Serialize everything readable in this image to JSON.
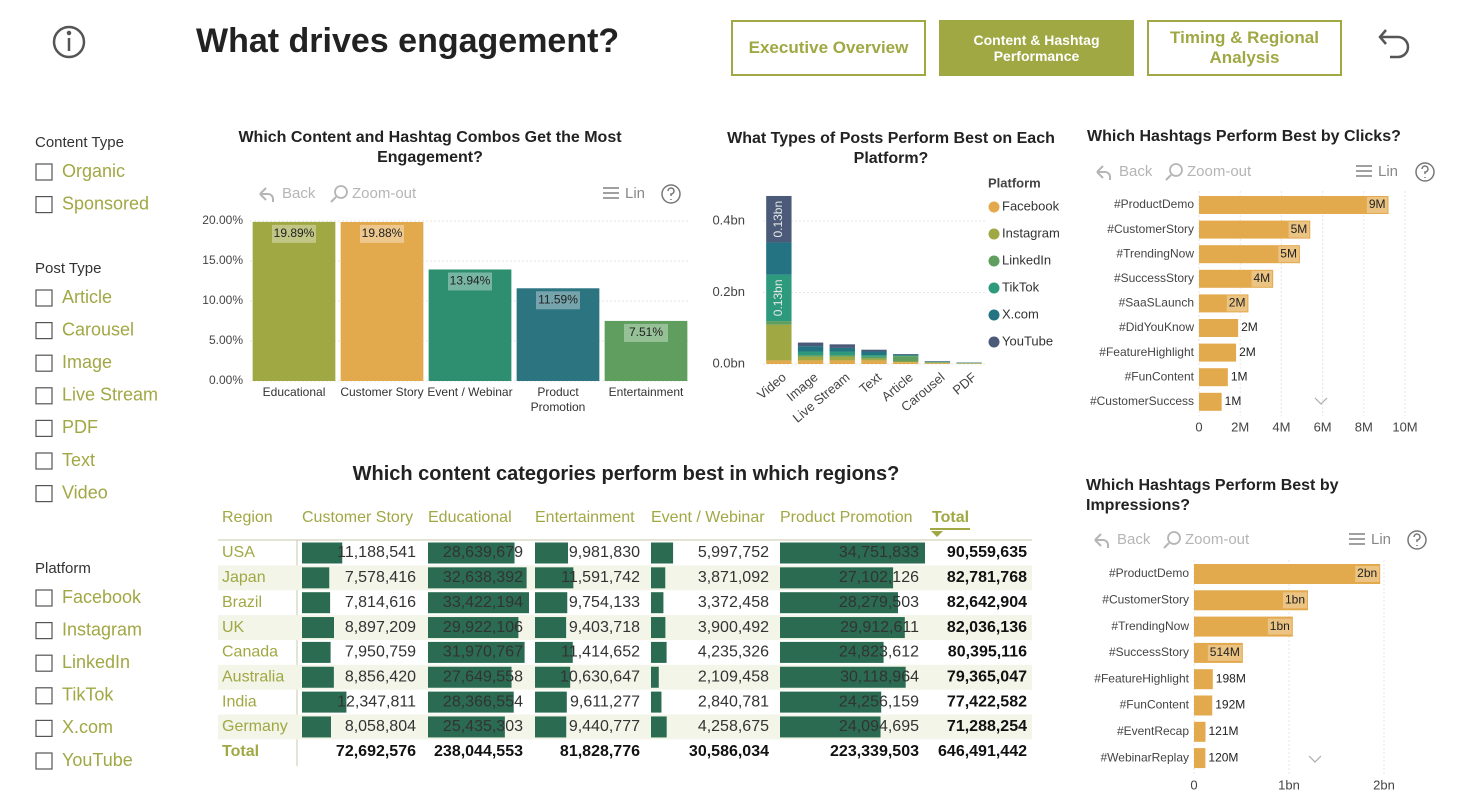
{
  "header": {
    "title": "What drives engagement?",
    "buttons": [
      "Executive Overview",
      "Content & Hashtag Performance",
      "Timing & Regional Analysis"
    ]
  },
  "slicers": [
    {
      "title": "Content Type",
      "items": [
        "Organic",
        "Sponsored"
      ]
    },
    {
      "title": "Post Type",
      "items": [
        "Article",
        "Carousel",
        "Image",
        "Live Stream",
        "PDF",
        "Text",
        "Video"
      ]
    },
    {
      "title": "Platform",
      "items": [
        "Facebook",
        "Instagram",
        "LinkedIn",
        "TikTok",
        "X.com",
        "YouTube"
      ]
    }
  ],
  "chart_data": [
    {
      "type": "bar",
      "title": "Which Content and Hashtag Combos Get the Most Engagement?",
      "toolbar": [
        "Back",
        "Zoom-out",
        "Lin"
      ],
      "categories": [
        "Educational",
        "Customer Story",
        "Event / Webinar",
        "Product Promotion",
        "Entertainment"
      ],
      "values": [
        19.89,
        19.88,
        13.94,
        11.59,
        7.51
      ],
      "value_labels": [
        "19.89%",
        "19.88%",
        "13.94%",
        "11.59%",
        "7.51%"
      ],
      "colors": [
        "#a0a844",
        "#e3a94d",
        "#2d8e70",
        "#2b7480",
        "#5f9e5e"
      ],
      "ylim": [
        0,
        20
      ],
      "yticks": [
        {
          "value": 0,
          "label": "0.00%"
        },
        {
          "value": 5,
          "label": "5.00%"
        },
        {
          "value": 10,
          "label": "10.00%"
        },
        {
          "value": 15,
          "label": "15.00%"
        },
        {
          "value": 20,
          "label": "20.00%"
        }
      ],
      "grid": true
    },
    {
      "type": "stacked_bar",
      "title": "What Types of Posts Perform Best on Each Platform?",
      "legend_title": "Platform",
      "categories": [
        "Video",
        "Image",
        "Live Stream",
        "Text",
        "Article",
        "Carousel",
        "PDF"
      ],
      "series": [
        {
          "name": "Facebook",
          "color": "#e3a94d",
          "values": [
            0.01,
            0.01,
            0.01,
            0.01,
            0.005,
            0.002,
            0.001
          ]
        },
        {
          "name": "Instagram",
          "color": "#a0a844",
          "values": [
            0.1,
            0.01,
            0.01,
            0.005,
            0.002,
            0.002,
            0.001
          ]
        },
        {
          "name": "LinkedIn",
          "color": "#5f9e5e",
          "values": [
            0.01,
            0.005,
            0.005,
            0.005,
            0.015,
            0.001,
            0.001
          ]
        },
        {
          "name": "TikTok",
          "color": "#2d9a7d",
          "values": [
            0.13,
            0.01,
            0.01,
            0.005,
            0.002,
            0.001,
            0.0005
          ],
          "value_labels": [
            "0.13bn",
            null,
            null,
            null,
            null,
            null,
            null
          ]
        },
        {
          "name": "X.com",
          "color": "#237383",
          "values": [
            0.09,
            0.015,
            0.01,
            0.01,
            0.002,
            0.001,
            0.0005
          ]
        },
        {
          "name": "YouTube",
          "color": "#4a5a78",
          "values": [
            0.13,
            0.01,
            0.01,
            0.005,
            0.002,
            0.001,
            0.0005
          ],
          "value_labels": [
            "0.13bn",
            null,
            null,
            null,
            null,
            null,
            null
          ]
        }
      ],
      "ylim": [
        0,
        0.4
      ],
      "yticks": [
        {
          "value": 0,
          "label": "0.0bn"
        },
        {
          "value": 0.2,
          "label": "0.2bn"
        },
        {
          "value": 0.4,
          "label": "0.4bn"
        }
      ],
      "grid": true
    },
    {
      "type": "hbar",
      "title": "Which Hashtags Perform Best by Clicks?",
      "toolbar": [
        "Back",
        "Zoom-out",
        "Lin"
      ],
      "categories": [
        "#ProductDemo",
        "#CustomerStory",
        "#TrendingNow",
        "#SuccessStory",
        "#SaaSLaunch",
        "#DidYouKnow",
        "#FeatureHighlight",
        "#FunContent",
        "#CustomerSuccess"
      ],
      "values": [
        9200000,
        5400000,
        4900000,
        3600000,
        2400000,
        1900000,
        1800000,
        1400000,
        1100000
      ],
      "value_labels": [
        "9M",
        "5M",
        "5M",
        "4M",
        "2M",
        "2M",
        "2M",
        "1M",
        "1M"
      ],
      "color": "#e3a94d",
      "xlim": [
        0,
        10000000
      ],
      "xticks": [
        0,
        {
          "value": 2000000,
          "label": "2M"
        },
        {
          "value": 4000000,
          "label": "4M"
        },
        {
          "value": 6000000,
          "label": "6M"
        },
        {
          "value": 8000000,
          "label": "8M"
        },
        {
          "value": 10000000,
          "label": "10M"
        }
      ]
    },
    {
      "type": "hbar",
      "title": "Which Hashtags Perform Best by Impressions?",
      "toolbar": [
        "Back",
        "Zoom-out",
        "Lin"
      ],
      "categories": [
        "#ProductDemo",
        "#CustomerStory",
        "#TrendingNow",
        "#SuccessStory",
        "#FeatureHighlight",
        "#FunContent",
        "#EventRecap",
        "#WebinarReplay"
      ],
      "values": [
        1960000000,
        1200000000,
        1040000000,
        514000000,
        198000000,
        192000000,
        121000000,
        120000000
      ],
      "value_labels": [
        "2bn",
        "1bn",
        "1bn",
        "514M",
        "198M",
        "192M",
        "121M",
        "120M"
      ],
      "color": "#e3a94d",
      "xlim": [
        0,
        2000000000
      ],
      "xticks": [
        0,
        {
          "value": 1000000000,
          "label": "1bn"
        },
        {
          "value": 2000000000,
          "label": "2bn"
        }
      ]
    }
  ],
  "table": {
    "title": "Which content categories perform best in which regions?",
    "columns": [
      "Region",
      "Customer Story",
      "Educational",
      "Entertainment",
      "Event / Webinar",
      "Product Promotion",
      "Total"
    ],
    "rows": [
      {
        "region": "USA",
        "values": [
          11188541,
          28639679,
          9981830,
          5997752,
          34751833
        ],
        "labels": [
          "11,188,541",
          "28,639,679",
          "9,981,830",
          "5,997,752",
          "34,751,833"
        ],
        "total": "90,559,635"
      },
      {
        "region": "Japan",
        "values": [
          7578416,
          32638392,
          11591742,
          3871092,
          27102126
        ],
        "labels": [
          "7,578,416",
          "32,638,392",
          "11,591,742",
          "3,871,092",
          "27,102,126"
        ],
        "total": "82,781,768"
      },
      {
        "region": "Brazil",
        "values": [
          7814616,
          33422194,
          9754133,
          3372458,
          28279503
        ],
        "labels": [
          "7,814,616",
          "33,422,194",
          "9,754,133",
          "3,372,458",
          "28,279,503"
        ],
        "total": "82,642,904"
      },
      {
        "region": "UK",
        "values": [
          8897209,
          29922106,
          9403718,
          3900492,
          29912611
        ],
        "labels": [
          "8,897,209",
          "29,922,106",
          "9,403,718",
          "3,900,492",
          "29,912,611"
        ],
        "total": "82,036,136"
      },
      {
        "region": "Canada",
        "values": [
          7950759,
          31970767,
          11414652,
          4235326,
          24823612
        ],
        "labels": [
          "7,950,759",
          "31,970,767",
          "11,414,652",
          "4,235,326",
          "24,823,612"
        ],
        "total": "80,395,116"
      },
      {
        "region": "Australia",
        "values": [
          8856420,
          27649558,
          10630647,
          2109458,
          30118964
        ],
        "labels": [
          "8,856,420",
          "27,649,558",
          "10,630,647",
          "2,109,458",
          "30,118,964"
        ],
        "total": "79,365,047"
      },
      {
        "region": "India",
        "values": [
          12347811,
          28366554,
          9611277,
          2840781,
          24256159
        ],
        "labels": [
          "12,347,811",
          "28,366,554",
          "9,611,277",
          "2,840,781",
          "24,256,159"
        ],
        "total": "77,422,582"
      },
      {
        "region": "Germany",
        "values": [
          8058804,
          25435303,
          9440777,
          4258675,
          24094695
        ],
        "labels": [
          "8,058,804",
          "25,435,303",
          "9,440,777",
          "4,258,675",
          "24,094,695"
        ],
        "total": "71,288,254"
      }
    ],
    "total_row": {
      "label": "Total",
      "values": [
        "72,692,576",
        "238,044,553",
        "81,828,776",
        "30,586,034",
        "223,339,503",
        "646,491,442"
      ]
    }
  }
}
